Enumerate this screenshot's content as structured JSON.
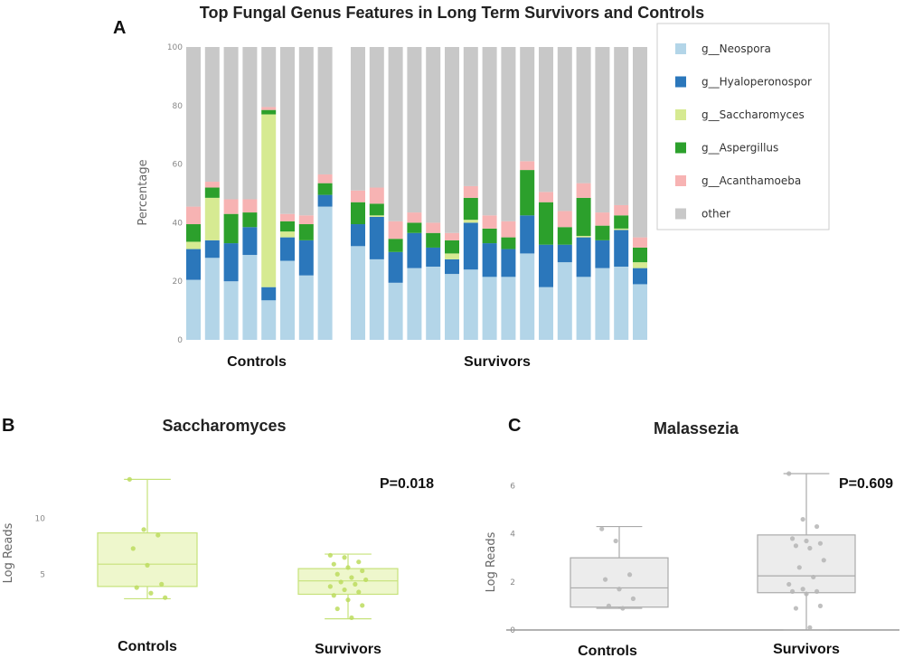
{
  "colors": {
    "Neospora": "#b3d5e8",
    "Hyaloperonospor": "#2b77bb",
    "Saccharomyces": "#d6ea92",
    "Aspergillus": "#2ca02c",
    "Acanthamoeba": "#f7b3b3",
    "other": "#c8c8c8",
    "box_b_fill": "#eef7cc",
    "box_b_stroke": "#c6e27a",
    "box_c_fill": "#ececec",
    "box_c_stroke": "#aaaaaa"
  },
  "panel_labels": {
    "a": "A",
    "b": "B",
    "c": "C"
  },
  "chart_data": [
    {
      "type": "bar",
      "stacked": true,
      "title": "Top Fungal Genus Features in Long Term Survivors and Controls",
      "ylabel": "Percentage",
      "ylim": [
        0,
        100
      ],
      "yticks": [
        "0",
        "20",
        "40",
        "60",
        "80",
        "100"
      ],
      "group_labels": [
        "Controls",
        "Survivors"
      ],
      "legend_position": "top-right",
      "legend": [
        "g__Neospora",
        "g__Hyaloperonospor",
        "g__Saccharomyces",
        "g__Aspergillus",
        "g__Acanthamoeba",
        "other"
      ],
      "series_keys": [
        "Neospora",
        "Hyaloperonospor",
        "Saccharomyces",
        "Aspergillus",
        "Acanthamoeba",
        "other"
      ],
      "groups": [
        {
          "name": "Controls",
          "bars": [
            [
              20.5,
              10.5,
              2.5,
              6,
              6,
              54.5
            ],
            [
              28,
              6,
              14.5,
              3.5,
              2,
              46
            ],
            [
              20,
              13,
              0,
              10,
              5,
              52
            ],
            [
              29,
              9.5,
              0,
              5,
              4.5,
              52
            ],
            [
              13.5,
              4.5,
              59,
              1.5,
              1,
              20.5
            ],
            [
              27,
              8,
              2,
              3.5,
              2.5,
              57
            ],
            [
              22,
              12,
              0,
              5.5,
              3,
              57.5
            ],
            [
              45.5,
              4,
              0,
              4,
              3,
              43.5
            ]
          ]
        },
        {
          "name": "Survivors",
          "bars": [
            [
              32,
              7.5,
              0,
              7.5,
              4,
              49
            ],
            [
              27.5,
              14.5,
              0.5,
              4,
              5.5,
              48
            ],
            [
              19.5,
              10.5,
              0,
              4.5,
              6,
              59.5
            ],
            [
              24.5,
              12,
              0,
              3.5,
              3.5,
              56.5
            ],
            [
              25,
              6.5,
              0,
              5,
              3.5,
              60
            ],
            [
              22.5,
              5,
              2,
              4.5,
              2.5,
              63.5
            ],
            [
              24,
              16,
              1,
              7.5,
              4,
              47.5
            ],
            [
              21.5,
              11.5,
              0,
              5,
              4.5,
              57.5
            ],
            [
              21.5,
              9.5,
              0,
              4,
              5.5,
              59.5
            ],
            [
              29.5,
              13,
              0,
              15.5,
              3,
              39
            ],
            [
              18,
              14.5,
              0,
              14.5,
              3.5,
              49.5
            ],
            [
              26.5,
              6,
              0,
              6,
              5.5,
              56
            ],
            [
              21.5,
              13.5,
              0.5,
              13,
              5,
              46.5
            ],
            [
              24.5,
              9.5,
              0,
              5,
              4.5,
              56.5
            ],
            [
              25,
              12.5,
              0.5,
              4.5,
              3.5,
              54
            ],
            [
              19,
              5.5,
              2,
              5,
              3.5,
              65
            ]
          ]
        }
      ]
    },
    {
      "type": "box",
      "title": "Saccharomyces",
      "ylabel": "Log Reads",
      "ylim": [
        0,
        14.5
      ],
      "yticks": [
        5,
        10
      ],
      "annotation": "P=0.018",
      "categories": [
        "Controls",
        "Survivors"
      ],
      "boxes": [
        {
          "min": 2.8,
          "q1": 3.9,
          "median": 5.9,
          "q3": 8.7,
          "max": 13.5,
          "points": [
            13.5,
            9.0,
            8.5,
            7.3,
            5.8,
            4.1,
            3.8,
            3.3,
            2.9
          ]
        },
        {
          "min": 1.0,
          "q1": 3.2,
          "median": 4.4,
          "q3": 5.5,
          "max": 6.8,
          "points": [
            6.7,
            6.5,
            6.1,
            5.9,
            5.6,
            5.3,
            5.0,
            4.7,
            4.5,
            4.3,
            4.1,
            3.9,
            3.6,
            3.4,
            3.1,
            2.7,
            2.2,
            1.9,
            1.1
          ]
        }
      ]
    },
    {
      "type": "box",
      "title": "Malassezia",
      "ylabel": "Log Reads",
      "ylim": [
        0,
        6.8
      ],
      "yticks": [
        0,
        2,
        4,
        6
      ],
      "annotation": "P=0.609",
      "categories": [
        "Controls",
        "Survivors"
      ],
      "boxes": [
        {
          "min": 0.9,
          "q1": 0.95,
          "median": 1.75,
          "q3": 3.0,
          "max": 4.3,
          "points": [
            4.2,
            3.7,
            2.3,
            2.1,
            1.7,
            1.3,
            1.0,
            0.9
          ]
        },
        {
          "min": 0.0,
          "q1": 1.55,
          "median": 2.25,
          "q3": 3.95,
          "max": 6.5,
          "points": [
            6.5,
            4.6,
            4.3,
            3.8,
            3.7,
            3.6,
            3.5,
            3.4,
            2.9,
            2.6,
            2.2,
            1.9,
            1.7,
            1.6,
            1.6,
            1.5,
            1.0,
            0.9,
            0.1
          ]
        }
      ]
    }
  ]
}
